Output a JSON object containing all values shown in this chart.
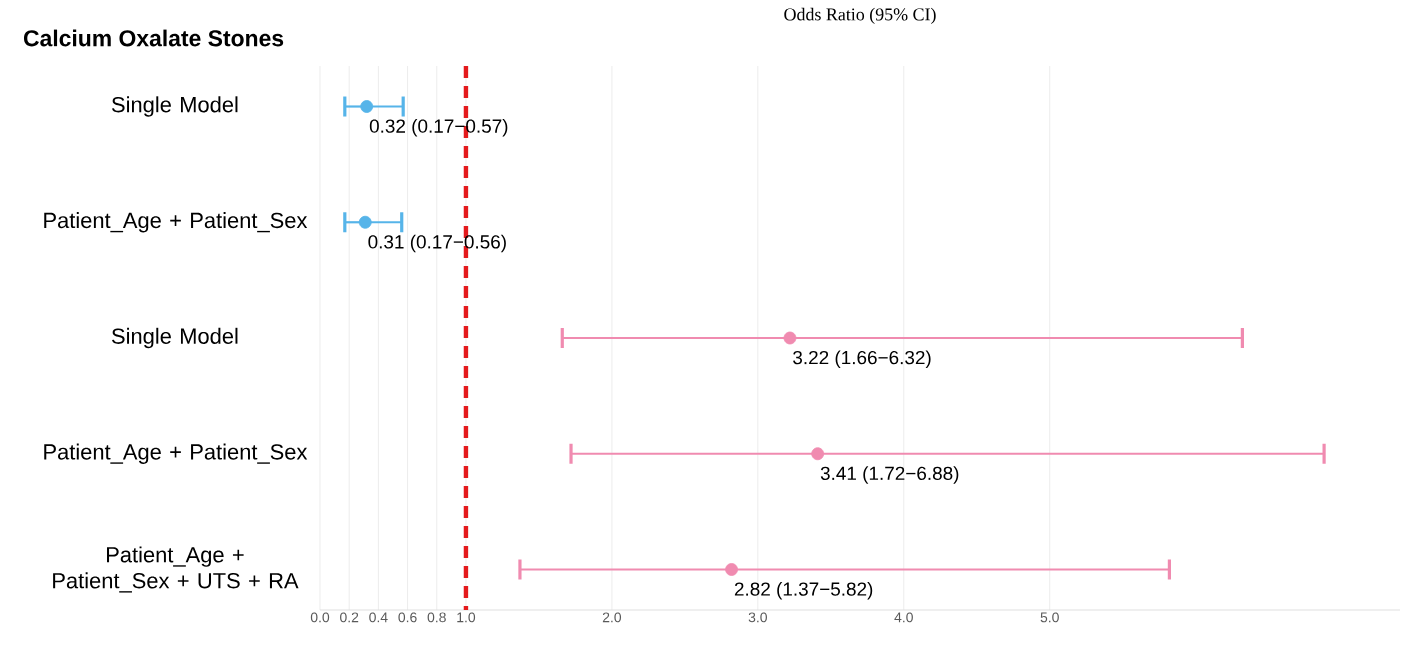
{
  "chart_data": {
    "type": "scatter",
    "title": "Calcium Oxalate Stones",
    "xlabel": "Odds Ratio (95% CI)",
    "orientation": "horizontal",
    "categories": [
      "Single Model",
      "Patient_Age + Patient_Sex",
      "Single Model",
      "Patient_Age + Patient_Sex",
      "Patient_Age + Patient_Sex + UTS + RA"
    ],
    "series": [
      {
        "color": "#56b4e9",
        "values": [
          0.32,
          0.31,
          null,
          null,
          null
        ],
        "errors": [
          [
            0.17,
            0.57
          ],
          [
            0.17,
            0.56
          ],
          null,
          null,
          null
        ],
        "value_labels": [
          "0.32 (0.17−0.57)",
          "0.31 (0.17−0.56)",
          null,
          null,
          null
        ]
      },
      {
        "color": "#f08bb0",
        "values": [
          null,
          null,
          3.22,
          3.41,
          2.82
        ],
        "errors": [
          null,
          null,
          [
            1.66,
            6.32
          ],
          [
            1.72,
            6.88
          ],
          [
            1.37,
            5.82
          ]
        ],
        "value_labels": [
          null,
          null,
          "3.22 (1.66−6.32)",
          "3.41 (1.72−6.88)",
          "2.82 (1.37−5.82)"
        ]
      }
    ],
    "xlim": [
      0,
      7.4
    ],
    "xticks": [
      {
        "value": 0,
        "label": "0.0"
      },
      {
        "value": 0.2,
        "label": "0.2"
      },
      {
        "value": 0.4,
        "label": "0.4"
      },
      {
        "value": 0.6,
        "label": "0.6"
      },
      {
        "value": 0.8,
        "label": "0.8"
      },
      {
        "value": 1,
        "label": "1.0"
      },
      {
        "value": 2,
        "label": "2.0"
      },
      {
        "value": 3,
        "label": "3.0"
      },
      {
        "value": 4,
        "label": "4.0"
      },
      {
        "value": 5,
        "label": "5.0"
      }
    ],
    "ref_lines": [
      {
        "axis": "x",
        "value": 1,
        "color": "#e41a1c",
        "line_style": "dashed"
      }
    ],
    "grid": "x",
    "marker": "circle"
  }
}
